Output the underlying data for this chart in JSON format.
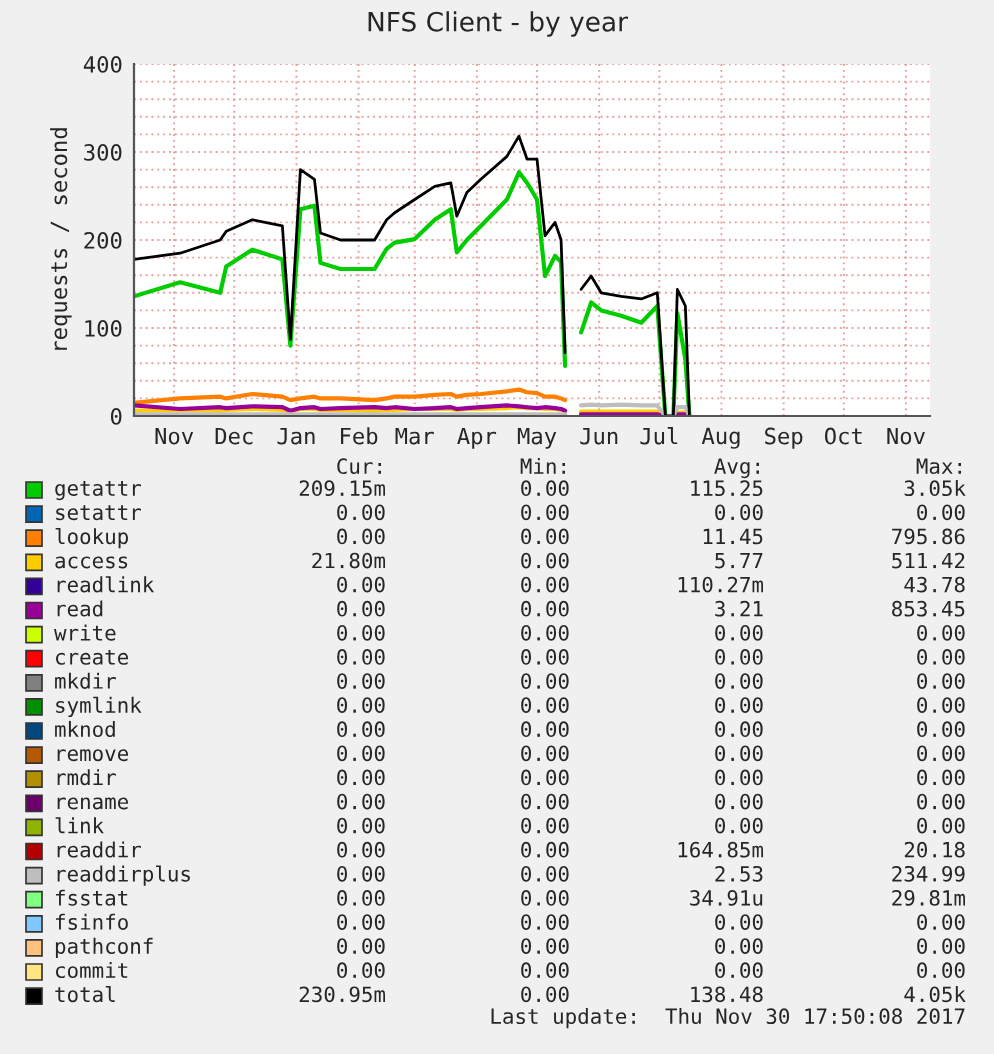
{
  "chart_data": {
    "type": "line",
    "title": "NFS Client - by year",
    "ylabel": "requests / second",
    "x": [
      "2016-10-26",
      "2016-11-18",
      "2016-12-08",
      "2016-12-11",
      "2016-12-24",
      "2017-01-08",
      "2017-01-12",
      "2017-01-17",
      "2017-01-24",
      "2017-01-27",
      "2017-02-06",
      "2017-02-23",
      "2017-03-01",
      "2017-03-05",
      "2017-03-15",
      "2017-03-25",
      "2017-04-02",
      "2017-04-05",
      "2017-04-10",
      "2017-04-17",
      "2017-04-30",
      "2017-05-06",
      "2017-05-10",
      "2017-05-15",
      "2017-05-19",
      "2017-05-24",
      "2017-05-27",
      "2017-05-29",
      "2017-06-03",
      "2017-06-06",
      "2017-06-11",
      "2017-06-16",
      "2017-06-26",
      "2017-07-06",
      "2017-07-14",
      "2017-07-18",
      "2017-07-22",
      "2017-07-24",
      "2017-07-28",
      "2017-07-30"
    ],
    "series": [
      {
        "name": "getattr",
        "color": "#00cc00",
        "values": [
          136,
          152,
          140,
          170,
          189,
          178,
          80,
          235,
          239,
          174,
          167,
          167,
          190,
          197,
          201,
          223,
          235,
          186,
          200,
          216,
          246,
          277,
          265,
          246,
          159,
          182,
          175,
          57,
          null,
          95,
          129,
          120,
          114,
          106,
          125,
          0,
          0,
          117,
          64,
          0
        ]
      },
      {
        "name": "setattr",
        "color": "#0066b3",
        "values": [
          null,
          null,
          null,
          null,
          null,
          null,
          null,
          null,
          null,
          null,
          null,
          null,
          null,
          null,
          null,
          null,
          null,
          null,
          null,
          null,
          null,
          null,
          null,
          null,
          null,
          null,
          null,
          null,
          null,
          null,
          null,
          null,
          null,
          null,
          null,
          null,
          null,
          null,
          null,
          null
        ]
      },
      {
        "name": "lookup",
        "color": "#ff8000",
        "values": [
          15,
          20,
          22,
          20,
          25,
          22,
          18,
          20,
          22,
          20,
          20,
          18,
          20,
          22,
          22,
          24,
          25,
          22,
          24,
          25,
          28,
          30,
          27,
          26,
          22,
          22,
          20,
          18,
          null,
          4,
          4,
          4,
          4,
          4,
          4,
          0,
          0,
          3,
          3,
          0
        ]
      },
      {
        "name": "access",
        "color": "#ffcc00",
        "values": [
          6,
          7,
          6,
          7,
          8,
          7,
          5,
          8,
          8,
          7,
          7,
          6,
          7,
          7,
          8,
          8,
          8,
          7,
          8,
          8,
          9,
          10,
          9,
          9,
          8,
          8,
          7,
          6,
          null,
          5,
          5,
          5,
          5,
          5,
          5,
          0,
          0,
          4,
          4,
          0
        ]
      },
      {
        "name": "readlink",
        "color": "#330099",
        "values": [
          null,
          null,
          null,
          null,
          null,
          null,
          null,
          null,
          null,
          null,
          null,
          null,
          null,
          null,
          null,
          null,
          null,
          null,
          null,
          null,
          null,
          null,
          null,
          null,
          null,
          null,
          null,
          null,
          null,
          null,
          null,
          null,
          null,
          null,
          null,
          null,
          null,
          null,
          null,
          null
        ]
      },
      {
        "name": "read",
        "color": "#990099",
        "values": [
          12,
          8,
          10,
          9,
          11,
          10,
          6,
          9,
          10,
          8,
          9,
          10,
          9,
          10,
          8,
          9,
          10,
          8,
          9,
          10,
          12,
          11,
          10,
          9,
          10,
          9,
          8,
          6,
          null,
          2,
          2,
          2,
          2,
          2,
          2,
          0,
          0,
          2,
          2,
          0
        ]
      },
      {
        "name": "write",
        "color": "#ccff00",
        "values": [
          null,
          null,
          null,
          null,
          null,
          null,
          null,
          null,
          null,
          null,
          null,
          null,
          null,
          null,
          null,
          null,
          null,
          null,
          null,
          null,
          null,
          null,
          null,
          null,
          null,
          null,
          null,
          null,
          null,
          null,
          null,
          null,
          null,
          null,
          null,
          null,
          null,
          null,
          null,
          null
        ]
      },
      {
        "name": "create",
        "color": "#ff0000",
        "values": [
          null,
          null,
          null,
          null,
          null,
          null,
          null,
          null,
          null,
          null,
          null,
          null,
          null,
          null,
          null,
          null,
          null,
          null,
          null,
          null,
          null,
          null,
          null,
          null,
          null,
          null,
          null,
          null,
          null,
          null,
          null,
          null,
          null,
          null,
          null,
          null,
          null,
          null,
          null,
          null
        ]
      },
      {
        "name": "mkdir",
        "color": "#808080",
        "values": [
          null,
          null,
          null,
          null,
          null,
          null,
          null,
          null,
          null,
          null,
          null,
          null,
          null,
          null,
          null,
          null,
          null,
          null,
          null,
          null,
          null,
          null,
          null,
          null,
          null,
          null,
          null,
          null,
          null,
          null,
          null,
          null,
          null,
          null,
          null,
          null,
          null,
          null,
          null,
          null
        ]
      },
      {
        "name": "symlink",
        "color": "#008f00",
        "values": [
          null,
          null,
          null,
          null,
          null,
          null,
          null,
          null,
          null,
          null,
          null,
          null,
          null,
          null,
          null,
          null,
          null,
          null,
          null,
          null,
          null,
          null,
          null,
          null,
          null,
          null,
          null,
          null,
          null,
          null,
          null,
          null,
          null,
          null,
          null,
          null,
          null,
          null,
          null,
          null
        ]
      },
      {
        "name": "mknod",
        "color": "#00487d",
        "values": [
          null,
          null,
          null,
          null,
          null,
          null,
          null,
          null,
          null,
          null,
          null,
          null,
          null,
          null,
          null,
          null,
          null,
          null,
          null,
          null,
          null,
          null,
          null,
          null,
          null,
          null,
          null,
          null,
          null,
          null,
          null,
          null,
          null,
          null,
          null,
          null,
          null,
          null,
          null,
          null
        ]
      },
      {
        "name": "remove",
        "color": "#b35a00",
        "values": [
          null,
          null,
          null,
          null,
          null,
          null,
          null,
          null,
          null,
          null,
          null,
          null,
          null,
          null,
          null,
          null,
          null,
          null,
          null,
          null,
          null,
          null,
          null,
          null,
          null,
          null,
          null,
          null,
          null,
          null,
          null,
          null,
          null,
          null,
          null,
          null,
          null,
          null,
          null,
          null
        ]
      },
      {
        "name": "rmdir",
        "color": "#b38f00",
        "values": [
          null,
          null,
          null,
          null,
          null,
          null,
          null,
          null,
          null,
          null,
          null,
          null,
          null,
          null,
          null,
          null,
          null,
          null,
          null,
          null,
          null,
          null,
          null,
          null,
          null,
          null,
          null,
          null,
          null,
          null,
          null,
          null,
          null,
          null,
          null,
          null,
          null,
          null,
          null,
          null
        ]
      },
      {
        "name": "rename",
        "color": "#6b006b",
        "values": [
          null,
          null,
          null,
          null,
          null,
          null,
          null,
          null,
          null,
          null,
          null,
          null,
          null,
          null,
          null,
          null,
          null,
          null,
          null,
          null,
          null,
          null,
          null,
          null,
          null,
          null,
          null,
          null,
          null,
          null,
          null,
          null,
          null,
          null,
          null,
          null,
          null,
          null,
          null,
          null
        ]
      },
      {
        "name": "link",
        "color": "#8fb300",
        "values": [
          null,
          null,
          null,
          null,
          null,
          null,
          null,
          null,
          null,
          null,
          null,
          null,
          null,
          null,
          null,
          null,
          null,
          null,
          null,
          null,
          null,
          null,
          null,
          null,
          null,
          null,
          null,
          null,
          null,
          null,
          null,
          null,
          null,
          null,
          null,
          null,
          null,
          null,
          null,
          null
        ]
      },
      {
        "name": "readdir",
        "color": "#b30000",
        "values": [
          null,
          null,
          null,
          null,
          null,
          null,
          null,
          null,
          null,
          null,
          null,
          null,
          null,
          null,
          null,
          null,
          null,
          null,
          null,
          null,
          null,
          null,
          null,
          null,
          null,
          null,
          null,
          null,
          null,
          null,
          null,
          null,
          null,
          null,
          null,
          null,
          null,
          null,
          null,
          null
        ]
      },
      {
        "name": "readdirplus",
        "color": "#bebebe",
        "values": [
          2,
          2,
          2,
          2,
          2,
          2,
          2,
          2,
          2,
          2,
          2,
          2,
          2,
          2,
          2,
          2,
          2,
          2,
          2,
          2,
          2,
          2,
          2,
          2,
          2,
          2,
          2,
          2,
          null,
          12,
          13,
          12,
          13,
          12,
          12,
          0,
          0,
          10,
          10,
          0
        ]
      },
      {
        "name": "fsstat",
        "color": "#80ff80",
        "values": [
          null,
          null,
          null,
          null,
          null,
          null,
          null,
          null,
          null,
          null,
          null,
          null,
          null,
          null,
          null,
          null,
          null,
          null,
          null,
          null,
          null,
          null,
          null,
          null,
          null,
          null,
          null,
          null,
          null,
          null,
          null,
          null,
          null,
          null,
          null,
          null,
          null,
          null,
          null,
          null
        ]
      },
      {
        "name": "fsinfo",
        "color": "#80c9ff",
        "values": [
          null,
          null,
          null,
          null,
          null,
          null,
          null,
          null,
          null,
          null,
          null,
          null,
          null,
          null,
          null,
          null,
          null,
          null,
          null,
          null,
          null,
          null,
          null,
          null,
          null,
          null,
          null,
          null,
          null,
          null,
          null,
          null,
          null,
          null,
          null,
          null,
          null,
          null,
          null,
          null
        ]
      },
      {
        "name": "pathconf",
        "color": "#ffc080",
        "values": [
          null,
          null,
          null,
          null,
          null,
          null,
          null,
          null,
          null,
          null,
          null,
          null,
          null,
          null,
          null,
          null,
          null,
          null,
          null,
          null,
          null,
          null,
          null,
          null,
          null,
          null,
          null,
          null,
          null,
          null,
          null,
          null,
          null,
          null,
          null,
          null,
          null,
          null,
          null,
          null
        ]
      },
      {
        "name": "commit",
        "color": "#ffe680",
        "values": [
          null,
          null,
          null,
          null,
          null,
          null,
          null,
          null,
          null,
          null,
          null,
          null,
          null,
          null,
          null,
          null,
          null,
          null,
          null,
          null,
          null,
          null,
          null,
          null,
          null,
          null,
          null,
          null,
          null,
          null,
          null,
          null,
          null,
          null,
          null,
          null,
          null,
          null,
          null,
          null
        ]
      },
      {
        "name": "total",
        "color": "#000000",
        "values": [
          178,
          185,
          200,
          210,
          223,
          216,
          87,
          280,
          269,
          208,
          200,
          200,
          223,
          231,
          246,
          261,
          265,
          227,
          254,
          269,
          295,
          318,
          292,
          292,
          205,
          220,
          200,
          72,
          null,
          144,
          159,
          140,
          136,
          133,
          140,
          0,
          0,
          144,
          125,
          0
        ]
      }
    ],
    "xlim": [
      "2016-10-26",
      "2017-11-27"
    ],
    "xticks": [
      {
        "value": "2016-11-15",
        "label": "Nov"
      },
      {
        "value": "2016-12-15",
        "label": "Dec"
      },
      {
        "value": "2017-01-15",
        "label": "Jan"
      },
      {
        "value": "2017-02-15",
        "label": "Feb"
      },
      {
        "value": "2017-03-15",
        "label": "Mar"
      },
      {
        "value": "2017-04-15",
        "label": "Apr"
      },
      {
        "value": "2017-05-15",
        "label": "May"
      },
      {
        "value": "2017-06-15",
        "label": "Jun"
      },
      {
        "value": "2017-07-15",
        "label": "Jul"
      },
      {
        "value": "2017-08-15",
        "label": "Aug"
      },
      {
        "value": "2017-09-15",
        "label": "Sep"
      },
      {
        "value": "2017-10-15",
        "label": "Oct"
      },
      {
        "value": "2017-11-15",
        "label": "Nov"
      }
    ],
    "ylim": [
      0,
      400
    ],
    "yticks": [
      0,
      {
        "value": 20,
        "label": null
      },
      {
        "value": 40,
        "label": null
      },
      {
        "value": 60,
        "label": null
      },
      {
        "value": 80,
        "label": null
      },
      100,
      {
        "value": 120,
        "label": null
      },
      {
        "value": 140,
        "label": null
      },
      {
        "value": 160,
        "label": null
      },
      {
        "value": 180,
        "label": null
      },
      200,
      {
        "value": 220,
        "label": null
      },
      {
        "value": 240,
        "label": null
      },
      {
        "value": 260,
        "label": null
      },
      {
        "value": 280,
        "label": null
      },
      300,
      {
        "value": 320,
        "label": null
      },
      {
        "value": 340,
        "label": null
      },
      {
        "value": 360,
        "label": null
      },
      {
        "value": 380,
        "label": null
      },
      400
    ],
    "grid": true,
    "legend": "bottom",
    "marker": "none",
    "line_style": "solid",
    "annotations": [
      "Cur:",
      "Min:",
      "Avg:",
      "Max:",
      "209.15m",
      "0.00",
      "115.25",
      "3.05k",
      "0.00",
      "0.00",
      "0.00",
      "0.00",
      "0.00",
      "0.00",
      "11.45",
      "795.86",
      "21.80m",
      "0.00",
      "5.77",
      "511.42",
      "0.00",
      "0.00",
      "110.27m",
      "43.78",
      "0.00",
      "0.00",
      "3.21",
      "853.45",
      "0.00",
      "0.00",
      "0.00",
      "0.00",
      "0.00",
      "0.00",
      "0.00",
      "0.00",
      "0.00",
      "0.00",
      "0.00",
      "0.00",
      "0.00",
      "0.00",
      "0.00",
      "0.00",
      "0.00",
      "0.00",
      "0.00",
      "0.00",
      "0.00",
      "0.00",
      "0.00",
      "0.00",
      "0.00",
      "0.00",
      "0.00",
      "0.00",
      "0.00",
      "0.00",
      "0.00",
      "0.00",
      "0.00",
      "0.00",
      "0.00",
      "0.00",
      "0.00",
      "0.00",
      "164.85m",
      "20.18",
      "0.00",
      "0.00",
      "2.53",
      "234.99",
      "0.00",
      "0.00",
      "34.91u",
      "29.81m",
      "0.00",
      "0.00",
      "0.00",
      "0.00",
      "0.00",
      "0.00",
      "0.00",
      "0.00",
      "0.00",
      "0.00",
      "0.00",
      "0.00",
      "230.95m",
      "0.00",
      "138.48",
      "4.05k",
      "Last update:  Thu Nov 30 17:50:08 2017"
    ]
  }
}
